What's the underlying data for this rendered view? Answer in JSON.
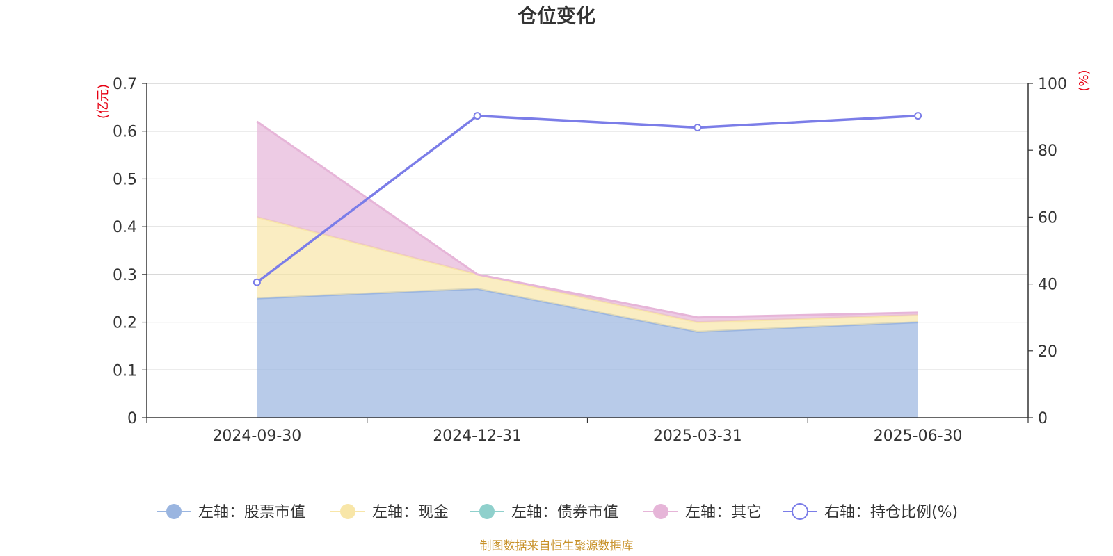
{
  "chart_data": {
    "type": "area",
    "title": "仓位变化",
    "categories": [
      "2024-09-30",
      "2024-12-31",
      "2025-03-31",
      "2025-06-30"
    ],
    "left_axis": {
      "unit": "(亿元)",
      "ylim": [
        0,
        0.7
      ],
      "ticks": [
        "0",
        "0.1",
        "0.2",
        "0.3",
        "0.4",
        "0.5",
        "0.6",
        "0.7"
      ]
    },
    "right_axis": {
      "unit": "(%)",
      "ylim": [
        0,
        100
      ],
      "ticks": [
        "0",
        "20",
        "40",
        "60",
        "80",
        "100"
      ]
    },
    "series": [
      {
        "name": "左轴：股票市值",
        "axis": "left",
        "kind": "stacked-area",
        "values": [
          0.25,
          0.27,
          0.18,
          0.2
        ],
        "color": "#9ab5e0"
      },
      {
        "name": "左轴：现金",
        "axis": "left",
        "kind": "stacked-area",
        "values": [
          0.17,
          0.03,
          0.02,
          0.015
        ],
        "color": "#f8e6a8"
      },
      {
        "name": "左轴：债券市值",
        "axis": "left",
        "kind": "stacked-area",
        "values": [
          0,
          0,
          0,
          0
        ],
        "color": "#8fd0cc"
      },
      {
        "name": "左轴：其它",
        "axis": "left",
        "kind": "stacked-area",
        "values": [
          0.2,
          0.0,
          0.01,
          0.005
        ],
        "color": "#e6b5d8"
      },
      {
        "name": "右轴：持仓比例(%)",
        "axis": "right",
        "kind": "line",
        "values": [
          40.5,
          90.3,
          86.8,
          90.3
        ],
        "color": "#7b7de8"
      }
    ],
    "grid": true,
    "legend_position": "bottom"
  },
  "footer": "制图数据来自恒生聚源数据库"
}
